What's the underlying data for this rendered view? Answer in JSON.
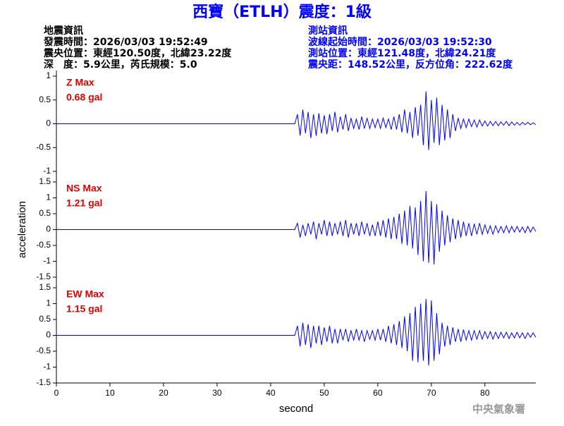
{
  "header": {
    "title": "西寶（ETLH）震度：1級",
    "info_left": [
      "地震資訊",
      "發震時間：2026/03/03 19:52:49",
      "震央位置：東經120.50度，北緯23.22度",
      "深　度：5.9公里，芮氏規模：5.0"
    ],
    "info_right": [
      "測站資訊",
      "波線起始時間：2026/03/03 19:52:30",
      "測站位置：東經121.48度，北緯24.21度",
      "震央距：148.52公里，反方位角：222.62度"
    ],
    "credit": "中央氣象署"
  },
  "chart_data": [
    {
      "type": "line",
      "annotation": [
        "Z Max",
        "0.68 gal"
      ],
      "x": [
        0,
        44.5,
        45,
        45.5,
        46,
        46.5,
        47,
        47.5,
        48,
        48.5,
        49,
        49.5,
        50,
        50.5,
        51,
        51.5,
        52,
        52.5,
        53,
        53.5,
        54,
        54.5,
        55,
        55.5,
        56,
        56.5,
        57,
        57.5,
        58,
        58.5,
        59,
        59.5,
        60,
        60.5,
        61,
        61.5,
        62,
        62.5,
        63,
        63.5,
        64,
        64.5,
        65,
        65.5,
        66,
        66.5,
        67,
        67.5,
        68,
        68.5,
        69,
        69.5,
        70,
        70.5,
        71,
        71.5,
        72,
        72.5,
        73,
        73.5,
        74,
        74.5,
        75,
        75.5,
        76,
        76.5,
        77,
        77.5,
        78,
        78.5,
        79,
        79.5,
        80,
        80.5,
        81,
        81.5,
        82,
        82.5,
        83,
        83.5,
        84,
        84.5,
        85,
        85.5,
        86,
        86.5,
        87,
        87.5,
        88,
        88.5,
        89,
        89.5
      ],
      "series": [
        {
          "color": "#0000ff",
          "values": [
            0,
            0,
            0.2,
            -0.25,
            0.3,
            -0.2,
            0.25,
            -0.3,
            0.2,
            -0.25,
            0.22,
            -0.2,
            0.18,
            -0.22,
            0.2,
            -0.15,
            0.25,
            -0.18,
            0.15,
            -0.12,
            0.2,
            -0.15,
            0.12,
            -0.1,
            0.1,
            -0.12,
            0.15,
            -0.1,
            0.12,
            -0.1,
            0.1,
            -0.08,
            0.1,
            -0.1,
            0.12,
            -0.08,
            0.1,
            -0.12,
            0.15,
            -0.12,
            0.2,
            -0.18,
            0.3,
            -0.2,
            0.25,
            -0.3,
            0.35,
            -0.25,
            0.4,
            -0.45,
            0.68,
            -0.55,
            0.5,
            -0.4,
            0.55,
            -0.45,
            0.4,
            -0.35,
            0.3,
            -0.3,
            0.2,
            -0.15,
            0.12,
            -0.1,
            0.1,
            -0.08,
            0.1,
            -0.06,
            0.08,
            -0.07,
            0.08,
            -0.05,
            0.06,
            -0.05,
            0.05,
            -0.04,
            0.05,
            -0.04,
            0.04,
            -0.03,
            0.05,
            -0.04,
            0.04,
            -0.03,
            0.03,
            -0.03,
            0.03,
            -0.02,
            0.03,
            -0.02,
            0.02,
            -0.02
          ]
        }
      ],
      "xlim": [
        0,
        89.5
      ],
      "ylim": [
        -1,
        1
      ],
      "yticks": [
        -1,
        -0.5,
        0,
        0.5,
        1
      ]
    },
    {
      "type": "line",
      "annotation": [
        "NS Max",
        "1.21 gal"
      ],
      "y_label": "acceleration",
      "x": [
        0,
        44.5,
        45,
        45.5,
        46,
        46.5,
        47,
        47.5,
        48,
        48.5,
        49,
        49.5,
        50,
        50.5,
        51,
        51.5,
        52,
        52.5,
        53,
        53.5,
        54,
        54.5,
        55,
        55.5,
        56,
        56.5,
        57,
        57.5,
        58,
        58.5,
        59,
        59.5,
        60,
        60.5,
        61,
        61.5,
        62,
        62.5,
        63,
        63.5,
        64,
        64.5,
        65,
        65.5,
        66,
        66.5,
        67,
        67.5,
        68,
        68.5,
        69,
        69.5,
        70,
        70.5,
        71,
        71.5,
        72,
        72.5,
        73,
        73.5,
        74,
        74.5,
        75,
        75.5,
        76,
        76.5,
        77,
        77.5,
        78,
        78.5,
        79,
        79.5,
        80,
        80.5,
        81,
        81.5,
        82,
        82.5,
        83,
        83.5,
        84,
        84.5,
        85,
        85.5,
        86,
        86.5,
        87,
        87.5,
        88,
        88.5,
        89,
        89.5
      ],
      "series": [
        {
          "color": "#0000ff",
          "values": [
            0,
            0,
            0.2,
            -0.25,
            0.15,
            -0.2,
            0.2,
            -0.15,
            0.25,
            -0.3,
            0.2,
            -0.15,
            0.3,
            -0.2,
            0.25,
            -0.2,
            0.2,
            -0.15,
            0.25,
            -0.2,
            0.3,
            -0.25,
            0.2,
            -0.15,
            0.2,
            -0.2,
            0.25,
            -0.15,
            0.2,
            -0.2,
            0.15,
            -0.2,
            0.25,
            -0.2,
            0.3,
            -0.25,
            0.35,
            -0.3,
            0.4,
            -0.3,
            0.5,
            -0.45,
            0.6,
            -0.5,
            0.75,
            -0.6,
            0.7,
            -0.8,
            0.9,
            -1.0,
            1.21,
            -1.05,
            0.9,
            -1.1,
            0.8,
            -0.7,
            0.6,
            -0.5,
            0.45,
            -0.4,
            0.35,
            -0.3,
            0.3,
            -0.25,
            0.25,
            -0.2,
            0.2,
            -0.2,
            0.18,
            -0.15,
            0.2,
            -0.15,
            0.15,
            -0.12,
            0.12,
            -0.15,
            0.12,
            -0.1,
            0.1,
            -0.1,
            0.12,
            -0.1,
            0.1,
            -0.08,
            0.1,
            -0.08,
            0.08,
            -0.1,
            0.1,
            -0.08,
            0.08,
            -0.06
          ]
        }
      ],
      "xlim": [
        0,
        89.5
      ],
      "ylim": [
        -1.5,
        1.5
      ],
      "yticks": [
        -1.5,
        -1,
        -0.5,
        0,
        0.5,
        1,
        1.5
      ]
    },
    {
      "type": "line",
      "annotation": [
        "EW Max",
        "1.15 gal"
      ],
      "x_label": "second",
      "x": [
        0,
        44.5,
        45,
        45.5,
        46,
        46.5,
        47,
        47.5,
        48,
        48.5,
        49,
        49.5,
        50,
        50.5,
        51,
        51.5,
        52,
        52.5,
        53,
        53.5,
        54,
        54.5,
        55,
        55.5,
        56,
        56.5,
        57,
        57.5,
        58,
        58.5,
        59,
        59.5,
        60,
        60.5,
        61,
        61.5,
        62,
        62.5,
        63,
        63.5,
        64,
        64.5,
        65,
        65.5,
        66,
        66.5,
        67,
        67.5,
        68,
        68.5,
        69,
        69.5,
        70,
        70.5,
        71,
        71.5,
        72,
        72.5,
        73,
        73.5,
        74,
        74.5,
        75,
        75.5,
        76,
        76.5,
        77,
        77.5,
        78,
        78.5,
        79,
        79.5,
        80,
        80.5,
        81,
        81.5,
        82,
        82.5,
        83,
        83.5,
        84,
        84.5,
        85,
        85.5,
        86,
        86.5,
        87,
        87.5,
        88,
        88.5,
        89,
        89.5
      ],
      "series": [
        {
          "color": "#0000ff",
          "values": [
            0,
            0,
            0.3,
            -0.35,
            0.4,
            -0.3,
            0.35,
            -0.4,
            0.3,
            -0.25,
            0.3,
            -0.3,
            0.25,
            -0.2,
            0.3,
            -0.25,
            0.2,
            -0.25,
            0.2,
            -0.15,
            0.2,
            -0.2,
            0.15,
            -0.15,
            0.2,
            -0.15,
            0.15,
            -0.2,
            0.15,
            -0.12,
            0.15,
            -0.15,
            0.2,
            -0.15,
            0.2,
            -0.2,
            0.3,
            -0.25,
            0.35,
            -0.3,
            0.45,
            -0.4,
            0.6,
            -0.5,
            0.7,
            -0.8,
            0.9,
            -0.85,
            1.0,
            -0.8,
            1.15,
            -0.95,
            1.1,
            -0.8,
            0.7,
            -0.6,
            0.4,
            -0.35,
            0.3,
            -0.3,
            0.25,
            -0.2,
            0.2,
            -0.2,
            0.18,
            -0.15,
            0.15,
            -0.15,
            0.15,
            -0.12,
            0.15,
            -0.12,
            0.12,
            -0.1,
            0.12,
            -0.12,
            0.1,
            -0.1,
            0.1,
            -0.08,
            0.1,
            -0.1,
            0.08,
            -0.08,
            0.1,
            -0.08,
            0.08,
            -0.1,
            0.08,
            -0.06,
            0.08,
            -0.06
          ]
        }
      ],
      "xlim": [
        0,
        89.5
      ],
      "ylim": [
        -1.5,
        1.5
      ],
      "yticks": [
        -1.5,
        -1,
        -0.5,
        0,
        0.5,
        1,
        1.5
      ],
      "xticks": [
        0,
        10,
        20,
        30,
        40,
        50,
        60,
        70,
        80
      ]
    }
  ]
}
